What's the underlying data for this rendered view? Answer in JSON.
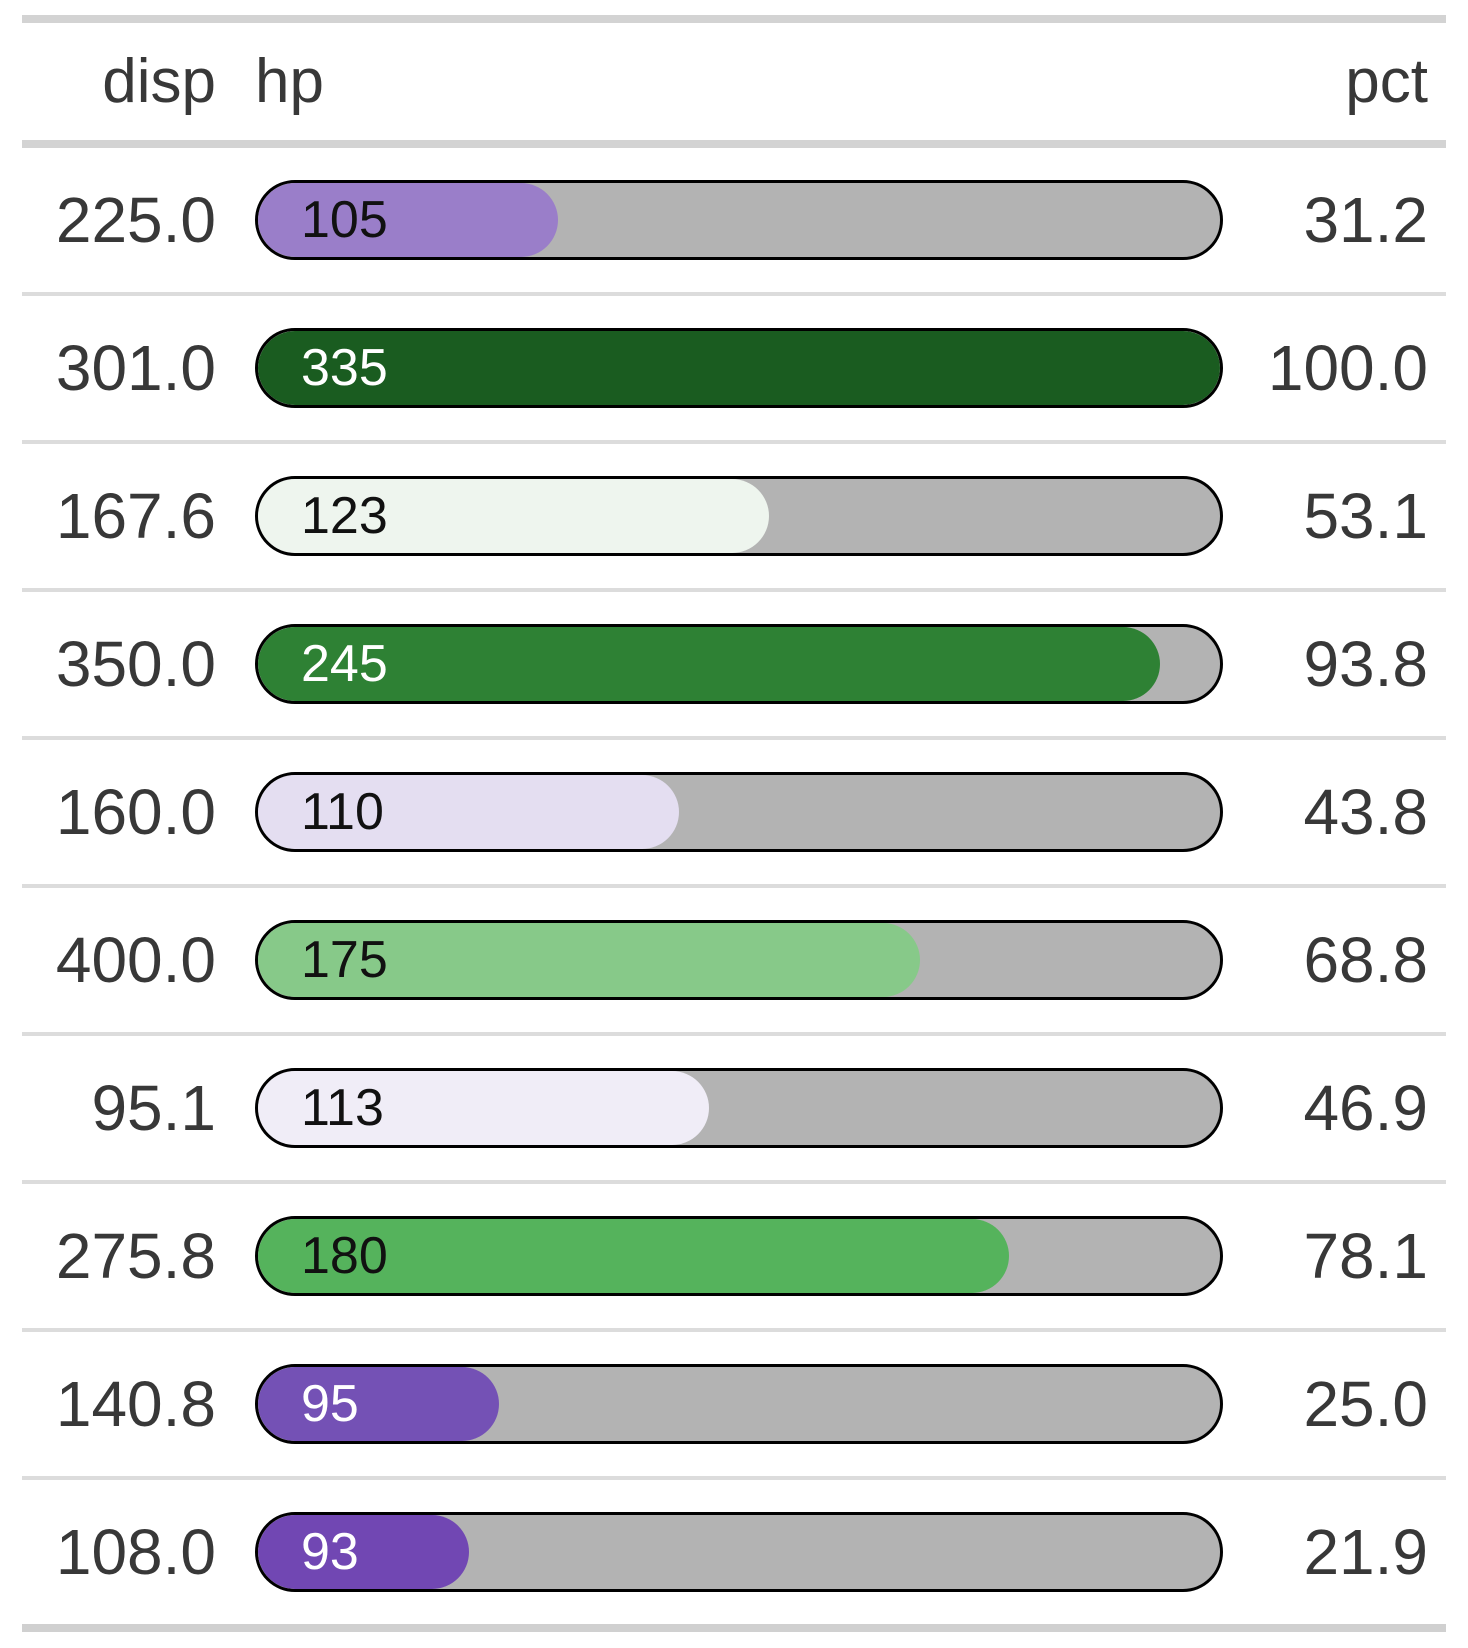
{
  "table": {
    "header": {
      "disp": "disp",
      "hp": "hp",
      "pct": "pct"
    },
    "rows": [
      {
        "disp": "225.0",
        "hp": "105",
        "pct": "31.2",
        "bar_width_pct": 31.2,
        "fill_color": "#9a7ec9",
        "label_color": "#111111"
      },
      {
        "disp": "301.0",
        "hp": "335",
        "pct": "100.0",
        "bar_width_pct": 100.0,
        "fill_color": "#1a5c20",
        "label_color": "#ffffff"
      },
      {
        "disp": "167.6",
        "hp": "123",
        "pct": "53.1",
        "bar_width_pct": 53.1,
        "fill_color": "#eef5ee",
        "label_color": "#111111"
      },
      {
        "disp": "350.0",
        "hp": "245",
        "pct": "93.8",
        "bar_width_pct": 93.8,
        "fill_color": "#2e8134",
        "label_color": "#ffffff"
      },
      {
        "disp": "160.0",
        "hp": "110",
        "pct": "43.8",
        "bar_width_pct": 43.8,
        "fill_color": "#e4def1",
        "label_color": "#111111"
      },
      {
        "disp": "400.0",
        "hp": "175",
        "pct": "68.8",
        "bar_width_pct": 68.8,
        "fill_color": "#87c989",
        "label_color": "#111111"
      },
      {
        "disp": "95.1",
        "hp": "113",
        "pct": "46.9",
        "bar_width_pct": 46.9,
        "fill_color": "#f0edf7",
        "label_color": "#111111"
      },
      {
        "disp": "275.8",
        "hp": "180",
        "pct": "78.1",
        "bar_width_pct": 78.1,
        "fill_color": "#55b35c",
        "label_color": "#111111"
      },
      {
        "disp": "140.8",
        "hp": "95",
        "pct": "25.0",
        "bar_width_pct": 25.0,
        "fill_color": "#7451b5",
        "label_color": "#ffffff"
      },
      {
        "disp": "108.0",
        "hp": "93",
        "pct": "21.9",
        "bar_width_pct": 21.9,
        "fill_color": "#7147b3",
        "label_color": "#ffffff"
      }
    ]
  },
  "colors": {
    "track": "#b3b3b3",
    "bar_outline": "#000000",
    "text": "#383838",
    "table_border": "#d3d3d3",
    "row_separator": "#dcdcdc",
    "background": "#ffffff"
  },
  "chart_data": {
    "type": "table",
    "title": "",
    "columns": [
      "disp",
      "hp",
      "pct"
    ],
    "rows": [
      [
        225.0,
        105,
        31.2
      ],
      [
        301.0,
        335,
        100.0
      ],
      [
        167.6,
        123,
        53.1
      ],
      [
        350.0,
        245,
        93.8
      ],
      [
        160.0,
        110,
        43.8
      ],
      [
        400.0,
        175,
        68.8
      ],
      [
        95.1,
        113,
        46.9
      ],
      [
        275.8,
        180,
        78.1
      ],
      [
        140.8,
        95,
        25.0
      ],
      [
        108.0,
        93,
        21.9
      ]
    ],
    "bar_column": "hp",
    "bar_width_source": "pct",
    "bar_width_range": [
      0,
      100
    ],
    "legend": "none",
    "notes": "hp column rendered as pill progress bar; bar fill width = pct value; fill color scales from purple (low hp) through near-white to dark green (high hp)"
  }
}
